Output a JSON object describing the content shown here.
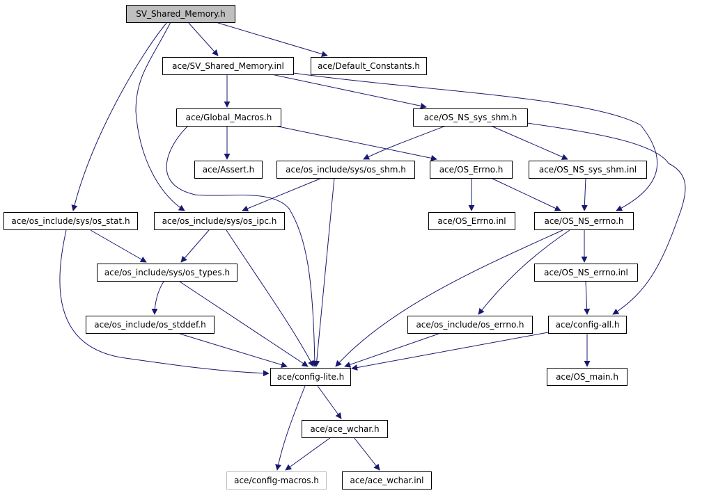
{
  "colors": {
    "edge": "#191970",
    "root_fill": "#bfbfbf",
    "node_border": "#000000",
    "missing_border": "#bfbfbf"
  },
  "nodes": {
    "root": "SV_Shared_Memory.h",
    "sv_inl": "ace/SV_Shared_Memory.inl",
    "default_constants": "ace/Default_Constants.h",
    "global_macros": "ace/Global_Macros.h",
    "os_ns_sys_shm": "ace/OS_NS_sys_shm.h",
    "assert": "ace/Assert.h",
    "os_shm": "ace/os_include/sys/os_shm.h",
    "os_errno_h": "ace/OS_Errno.h",
    "os_ns_sys_shm_inl": "ace/OS_NS_sys_shm.inl",
    "os_stat": "ace/os_include/sys/os_stat.h",
    "os_ipc": "ace/os_include/sys/os_ipc.h",
    "os_errno_inl": "ace/OS_Errno.inl",
    "os_ns_errno": "ace/OS_NS_errno.h",
    "os_types": "ace/os_include/sys/os_types.h",
    "os_ns_errno_inl": "ace/OS_NS_errno.inl",
    "os_stddef": "ace/os_include/os_stddef.h",
    "os_include_errno": "ace/os_include/os_errno.h",
    "config_all": "ace/config-all.h",
    "config_lite": "ace/config-lite.h",
    "os_main": "ace/OS_main.h",
    "ace_wchar": "ace/ace_wchar.h",
    "config_macros": "ace/config-macros.h",
    "ace_wchar_inl": "ace/ace_wchar.inl"
  },
  "edges": [
    [
      "root",
      "sv_inl"
    ],
    [
      "root",
      "default_constants"
    ],
    [
      "root",
      "os_stat"
    ],
    [
      "root",
      "os_ipc"
    ],
    [
      "sv_inl",
      "global_macros"
    ],
    [
      "sv_inl",
      "os_ns_sys_shm"
    ],
    [
      "sv_inl",
      "os_ns_errno"
    ],
    [
      "global_macros",
      "assert"
    ],
    [
      "global_macros",
      "os_errno_h"
    ],
    [
      "global_macros",
      "config_lite"
    ],
    [
      "os_ns_sys_shm",
      "os_shm"
    ],
    [
      "os_ns_sys_shm",
      "os_ns_sys_shm_inl"
    ],
    [
      "os_ns_sys_shm",
      "config_all"
    ],
    [
      "os_shm",
      "os_ipc"
    ],
    [
      "os_shm",
      "config_lite"
    ],
    [
      "os_errno_h",
      "os_errno_inl"
    ],
    [
      "os_errno_h",
      "os_ns_errno"
    ],
    [
      "os_ns_sys_shm_inl",
      "os_ns_errno"
    ],
    [
      "os_stat",
      "os_types"
    ],
    [
      "os_stat",
      "config_lite"
    ],
    [
      "os_ipc",
      "os_types"
    ],
    [
      "os_ipc",
      "config_lite"
    ],
    [
      "os_ns_errno",
      "config_lite"
    ],
    [
      "os_ns_errno",
      "os_include_errno"
    ],
    [
      "os_ns_errno",
      "os_ns_errno_inl"
    ],
    [
      "os_types",
      "os_stddef"
    ],
    [
      "os_types",
      "config_lite"
    ],
    [
      "os_ns_errno_inl",
      "config_all"
    ],
    [
      "os_stddef",
      "config_lite"
    ],
    [
      "os_include_errno",
      "config_lite"
    ],
    [
      "config_all",
      "config_lite"
    ],
    [
      "config_all",
      "os_main"
    ],
    [
      "config_lite",
      "config_macros"
    ],
    [
      "config_lite",
      "ace_wchar"
    ],
    [
      "ace_wchar",
      "config_macros"
    ],
    [
      "ace_wchar",
      "ace_wchar_inl"
    ]
  ]
}
